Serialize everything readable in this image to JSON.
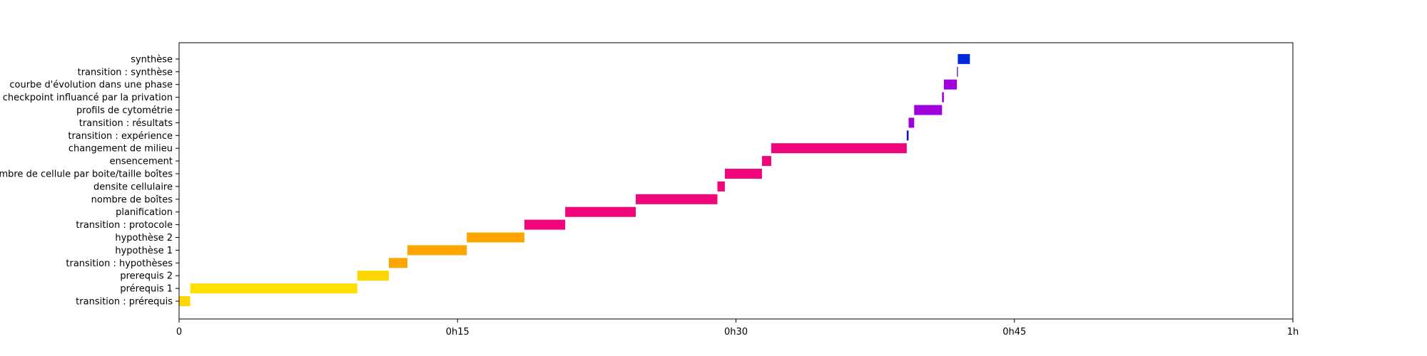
{
  "chart_data": {
    "type": "bar",
    "orientation": "horizontal",
    "title": "",
    "xlabel": "",
    "ylabel": "",
    "xlim_minutes": [
      0,
      60
    ],
    "x_ticks": [
      {
        "value": 0,
        "label": "0"
      },
      {
        "value": 15,
        "label": "0h15"
      },
      {
        "value": 30,
        "label": "0h30"
      },
      {
        "value": 45,
        "label": "0h45"
      },
      {
        "value": 60,
        "label": "1h"
      }
    ],
    "grid": false,
    "legend": "none",
    "tasks": [
      {
        "label": "transition : prérequis",
        "start": 0.0,
        "end": 0.6,
        "color": "#FFD700"
      },
      {
        "label": "prérequis 1",
        "start": 0.6,
        "end": 9.6,
        "color": "#FFE000"
      },
      {
        "label": "prerequis 2",
        "start": 9.6,
        "end": 11.3,
        "color": "#FFD700"
      },
      {
        "label": "transition : hypothèses",
        "start": 11.3,
        "end": 12.3,
        "color": "#FFA500"
      },
      {
        "label": "hypothèse 1",
        "start": 12.3,
        "end": 15.5,
        "color": "#FFA500"
      },
      {
        "label": "hypothèse 2",
        "start": 15.5,
        "end": 18.6,
        "color": "#FFA500"
      },
      {
        "label": "transition : protocole",
        "start": 18.6,
        "end": 20.8,
        "color": "#F0067A"
      },
      {
        "label": "planification",
        "start": 20.8,
        "end": 24.6,
        "color": "#F0067A"
      },
      {
        "label": "nombre de boîtes",
        "start": 24.6,
        "end": 29.0,
        "color": "#F0067A"
      },
      {
        "label": "densite cellulaire",
        "start": 29.0,
        "end": 29.4,
        "color": "#F0067A"
      },
      {
        "label": "nombre de cellule par boite/taille boîtes",
        "start": 29.4,
        "end": 31.4,
        "color": "#F0067A"
      },
      {
        "label": "ensencement",
        "start": 31.4,
        "end": 31.9,
        "color": "#F0067A"
      },
      {
        "label": "changement de milieu",
        "start": 31.9,
        "end": 39.2,
        "color": "#F0067A"
      },
      {
        "label": "transition : expérience",
        "start": 39.2,
        "end": 39.3,
        "color": "#0A14C8"
      },
      {
        "label": "transition : résultats",
        "start": 39.3,
        "end": 39.6,
        "color": "#A000DC"
      },
      {
        "label": "profils de cytométrie",
        "start": 39.6,
        "end": 41.1,
        "color": "#A000DC"
      },
      {
        "label": "checkpoint influancé par la privation",
        "start": 41.1,
        "end": 41.2,
        "color": "#A000DC"
      },
      {
        "label": "courbe d'évolution dans une phase",
        "start": 41.2,
        "end": 41.9,
        "color": "#A000DC"
      },
      {
        "label": "transition : synthèse",
        "start": 41.9,
        "end": 41.95,
        "color": "#6432E6"
      },
      {
        "label": "synthèse",
        "start": 41.95,
        "end": 42.6,
        "color": "#0028DC"
      }
    ]
  }
}
